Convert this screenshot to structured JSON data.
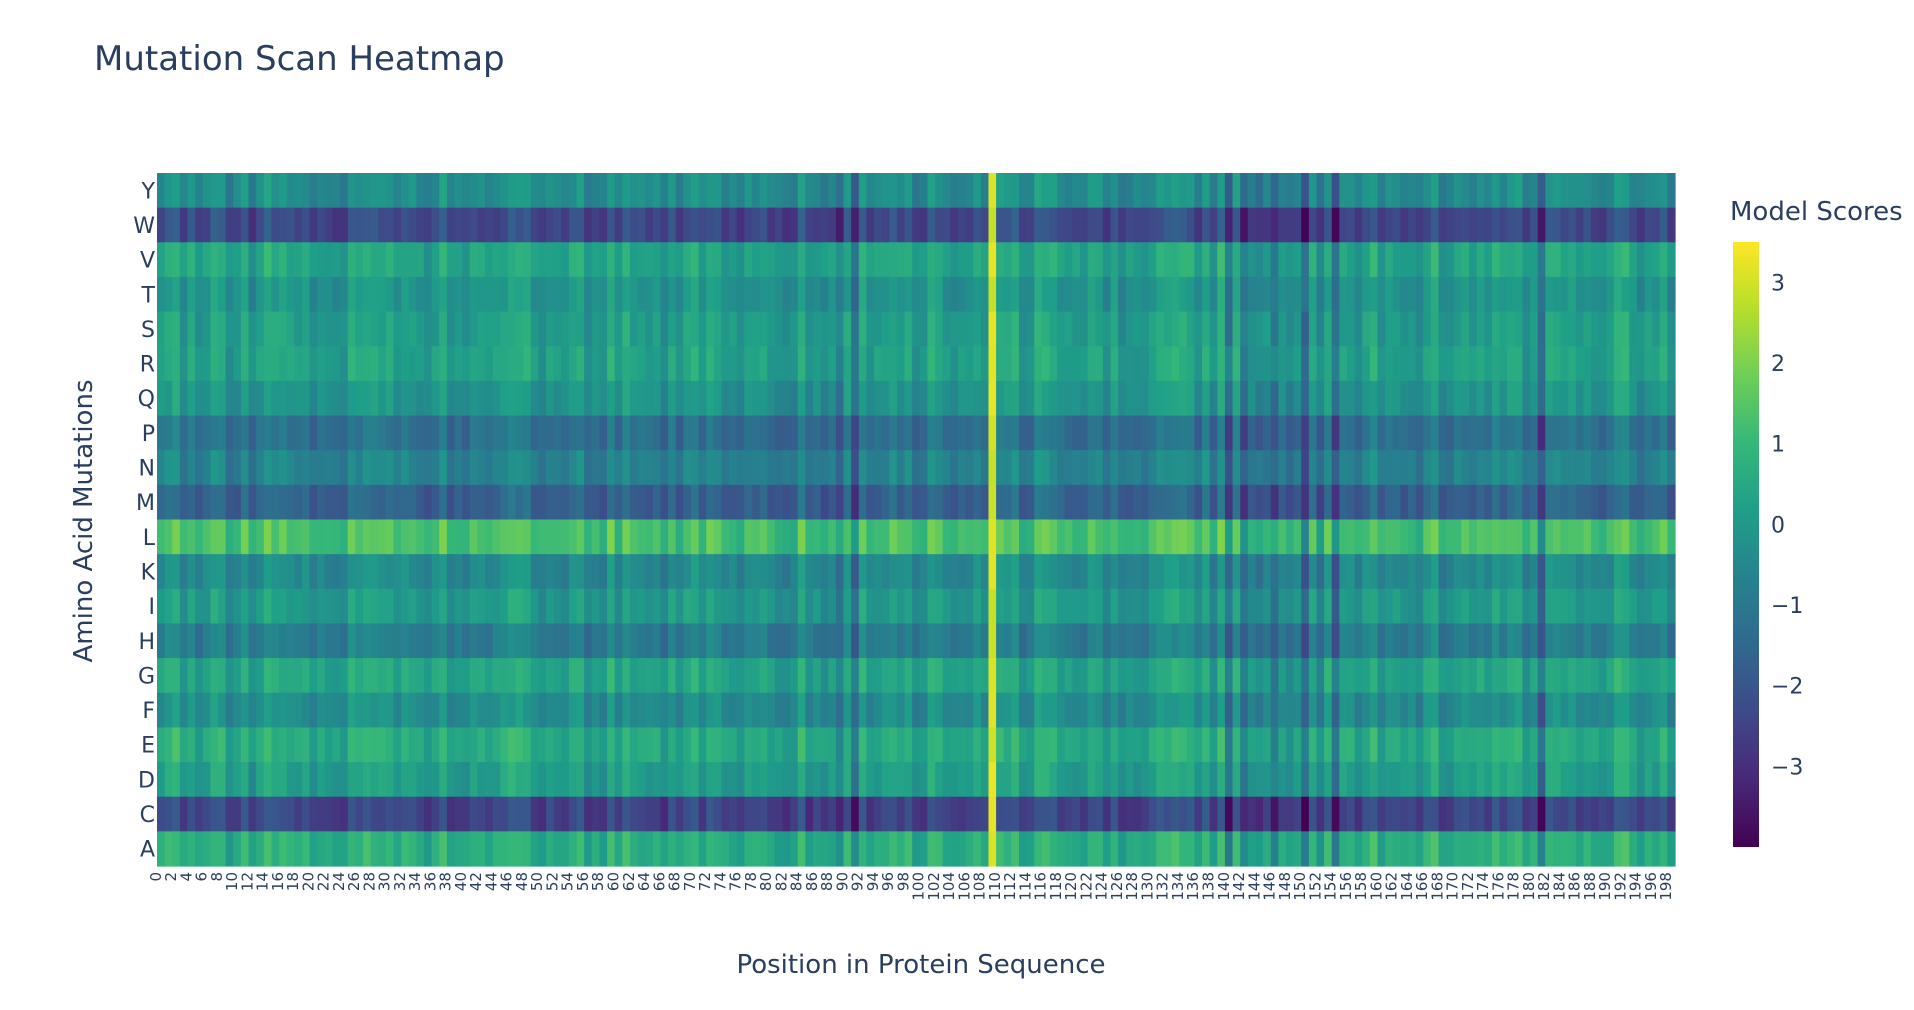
{
  "chart_data": {
    "type": "heatmap",
    "title": "Mutation Scan Heatmap",
    "xlabel": "Position in Protein Sequence",
    "ylabel": "Amino Acid Mutations",
    "colorbar_title": "Model Scores",
    "colorscale": "Viridis",
    "colorscale_stops": [
      "#440154",
      "#482878",
      "#3e4989",
      "#31688e",
      "#26828e",
      "#1f9e89",
      "#35b779",
      "#6ece58",
      "#b5de2b",
      "#fde725"
    ],
    "zlim": [
      -4.0,
      3.5
    ],
    "colorbar_ticks": [
      3,
      2,
      1,
      0,
      -1,
      -2,
      -3
    ],
    "y_categories": [
      "Y",
      "W",
      "V",
      "T",
      "S",
      "R",
      "Q",
      "P",
      "N",
      "M",
      "L",
      "K",
      "I",
      "H",
      "G",
      "F",
      "E",
      "D",
      "C",
      "A"
    ],
    "x_range": [
      0,
      198
    ],
    "x_tick_labels": [
      "0",
      "2",
      "4",
      "6",
      "8",
      "10",
      "12",
      "14",
      "16",
      "18",
      "20",
      "22",
      "24",
      "26",
      "28",
      "30",
      "32",
      "34",
      "36",
      "38",
      "40",
      "42",
      "44",
      "46",
      "48",
      "50",
      "52",
      "54",
      "56",
      "58",
      "60",
      "62",
      "64",
      "66",
      "68",
      "70",
      "72",
      "74",
      "76",
      "78",
      "80",
      "82",
      "84",
      "86",
      "88",
      "90",
      "92",
      "94",
      "96",
      "98",
      "100",
      "102",
      "104",
      "106",
      "108",
      "110",
      "112",
      "114",
      "116",
      "118",
      "120",
      "122",
      "124",
      "126",
      "128",
      "130",
      "132",
      "134",
      "136",
      "138",
      "140",
      "142",
      "144",
      "146",
      "148",
      "150",
      "152",
      "154",
      "156",
      "158",
      "160",
      "162",
      "164",
      "166",
      "168",
      "170",
      "172",
      "174",
      "176",
      "178",
      "180",
      "182",
      "184",
      "186",
      "188",
      "190",
      "192",
      "194",
      "196",
      "198"
    ],
    "row_baseline": {
      "Y": -0.3,
      "W": -2.3,
      "V": 0.4,
      "T": -0.1,
      "S": 0.2,
      "R": 0.3,
      "Q": -0.1,
      "P": -1.2,
      "N": -0.6,
      "M": -1.6,
      "L": 1.3,
      "K": -0.4,
      "I": 0.1,
      "H": -0.8,
      "G": 0.4,
      "F": -0.3,
      "E": 0.6,
      "D": 0.2,
      "C": -2.4,
      "A": 0.7
    },
    "column_effect": [
      {
        "position": 109,
        "delta": 2.8,
        "override_value": 3.3
      },
      {
        "position": 140,
        "delta": -1.6
      },
      {
        "position": 142,
        "delta": -0.8
      },
      {
        "position": 144,
        "delta": -1.3
      },
      {
        "position": 146,
        "delta": -1.8
      },
      {
        "position": 148,
        "delta": -1.0
      },
      {
        "position": 150,
        "delta": -1.5
      },
      {
        "position": 152,
        "delta": -1.4
      },
      {
        "position": 154,
        "delta": -1.2
      },
      {
        "position": 156,
        "delta": -0.6
      },
      {
        "position": 83,
        "delta": -0.7
      },
      {
        "position": 85,
        "delta": -1.0
      },
      {
        "position": 87,
        "delta": -0.9
      },
      {
        "position": 89,
        "delta": -0.8
      },
      {
        "position": 91,
        "delta": -0.9
      },
      {
        "position": 99,
        "delta": -0.6
      },
      {
        "position": 181,
        "delta": -1.2
      }
    ]
  }
}
